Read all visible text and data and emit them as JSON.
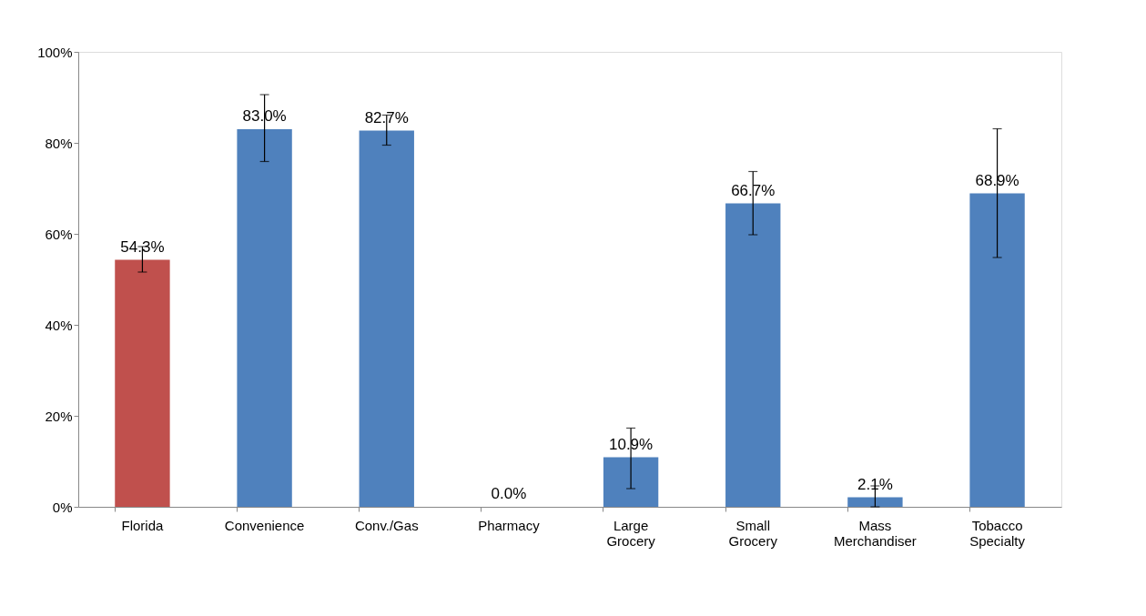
{
  "chart_data": {
    "type": "bar",
    "categories": [
      "Florida",
      "Convenience",
      "Conv./Gas",
      "Pharmacy",
      "Large Grocery",
      "Small Grocery",
      "Mass Merchandiser",
      "Tobacco Specialty"
    ],
    "values": [
      54.3,
      83.0,
      82.7,
      0.0,
      10.9,
      66.7,
      2.1,
      68.9
    ],
    "colors": [
      "#c0504d",
      "#4f81bd",
      "#4f81bd",
      "#4f81bd",
      "#4f81bd",
      "#4f81bd",
      "#4f81bd",
      "#4f81bd"
    ],
    "errors": [
      [
        51.6,
        57.2
      ],
      [
        75.9,
        90.6
      ],
      [
        79.5,
        86.1
      ],
      null,
      [
        4.0,
        17.3
      ],
      [
        59.8,
        73.7
      ],
      [
        0.0,
        4.6
      ],
      [
        54.8,
        83.1
      ]
    ],
    "value_labels": [
      "54.3%",
      "83.0%",
      "82.7%",
      "0.0%",
      "10.9%",
      "66.7%",
      "2.1%",
      "68.9%"
    ],
    "ylim": [
      0,
      100
    ],
    "yticks": [
      {
        "value": 0,
        "label": "0%"
      },
      {
        "value": 20,
        "label": "20%"
      },
      {
        "value": 40,
        "label": "40%"
      },
      {
        "value": 60,
        "label": "60%"
      },
      {
        "value": 80,
        "label": "80%"
      },
      {
        "value": 100,
        "label": "100%"
      }
    ],
    "grid": false
  }
}
